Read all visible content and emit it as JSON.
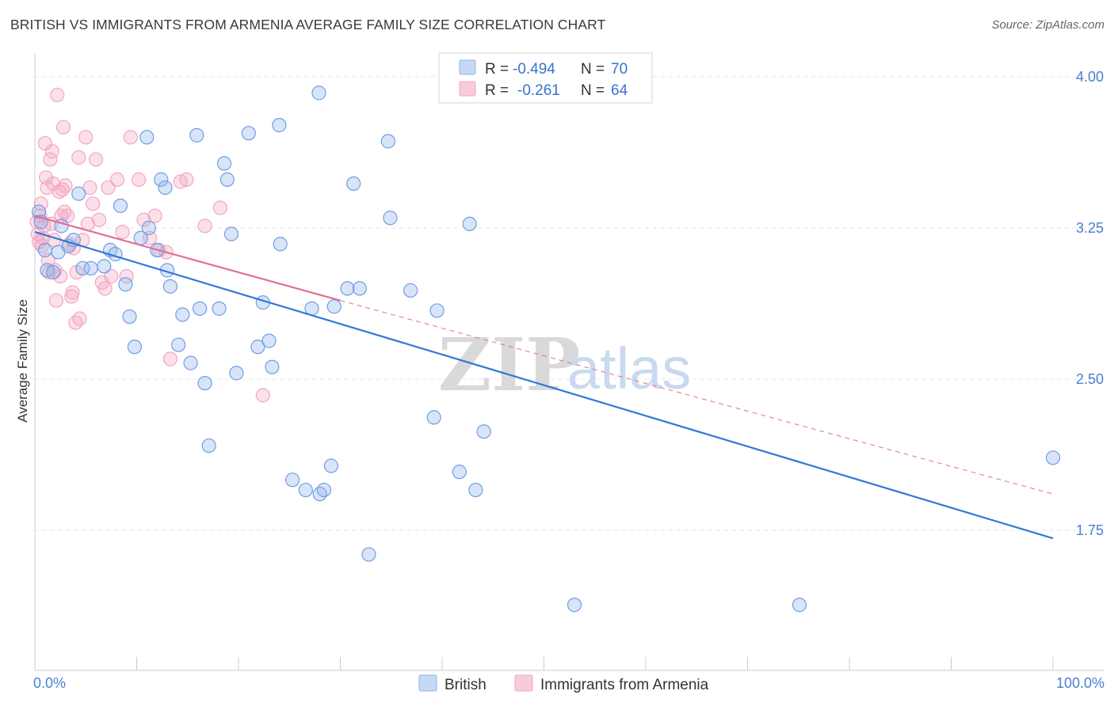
{
  "title": "BRITISH VS IMMIGRANTS FROM ARMENIA AVERAGE FAMILY SIZE CORRELATION CHART",
  "source": "Source: ZipAtlas.com",
  "watermark": {
    "zip": "ZIP",
    "atlas": "atlas"
  },
  "colors": {
    "british": "#8fb4ec",
    "british_line": "#2f78d8",
    "armenia": "#f3a6c2",
    "armenia_line": "#e06f96",
    "tick": "#4a7fd0",
    "grid": "#e6e6e6"
  },
  "legend": {
    "british": {
      "r_label": "R =",
      "r_value": "-0.494",
      "n_label": "N =",
      "n_value": "70"
    },
    "armenia": {
      "r_label": "R =",
      "r_value": "-0.261",
      "n_label": "N =",
      "n_value": "64"
    }
  },
  "chart_data": {
    "type": "scatter",
    "title": "BRITISH VS IMMIGRANTS FROM ARMENIA AVERAGE FAMILY SIZE CORRELATION CHART",
    "xlabel": "",
    "ylabel": "Average Family Size",
    "xlim": [
      0,
      100
    ],
    "ylim": [
      1.0,
      4.12
    ],
    "x_tick_labels": [
      "0.0%",
      "100.0%"
    ],
    "y_ticks": [
      1.75,
      2.5,
      3.25,
      4.0
    ],
    "y_tick_labels": [
      "1.75",
      "2.50",
      "3.25",
      "4.00"
    ],
    "grid": true,
    "legend_position": "bottom-center",
    "series": [
      {
        "name": "British",
        "trend": {
          "x": [
            0,
            100
          ],
          "y": [
            3.23,
            1.71
          ]
        },
        "points": [
          [
            0.4,
            3.33
          ],
          [
            0.6,
            3.28
          ],
          [
            1.0,
            3.14
          ],
          [
            1.2,
            3.04
          ],
          [
            1.8,
            3.03
          ],
          [
            2.3,
            3.13
          ],
          [
            2.6,
            3.26
          ],
          [
            3.3,
            3.16
          ],
          [
            3.8,
            3.19
          ],
          [
            4.3,
            3.42
          ],
          [
            4.7,
            3.05
          ],
          [
            5.5,
            3.05
          ],
          [
            6.8,
            3.06
          ],
          [
            7.4,
            3.14
          ],
          [
            7.9,
            3.12
          ],
          [
            8.4,
            3.36
          ],
          [
            8.9,
            2.97
          ],
          [
            9.3,
            2.81
          ],
          [
            9.8,
            2.66
          ],
          [
            10.4,
            3.2
          ],
          [
            11.0,
            3.7
          ],
          [
            11.2,
            3.25
          ],
          [
            12.0,
            3.14
          ],
          [
            12.4,
            3.49
          ],
          [
            12.8,
            3.45
          ],
          [
            13.0,
            3.04
          ],
          [
            13.3,
            2.96
          ],
          [
            14.1,
            2.67
          ],
          [
            14.5,
            2.82
          ],
          [
            15.3,
            2.58
          ],
          [
            15.9,
            3.71
          ],
          [
            16.2,
            2.85
          ],
          [
            16.7,
            2.48
          ],
          [
            17.1,
            2.17
          ],
          [
            18.1,
            2.85
          ],
          [
            18.6,
            3.57
          ],
          [
            18.9,
            3.49
          ],
          [
            19.3,
            3.22
          ],
          [
            19.8,
            2.53
          ],
          [
            21.0,
            3.72
          ],
          [
            21.9,
            2.66
          ],
          [
            22.4,
            2.88
          ],
          [
            23.0,
            2.69
          ],
          [
            23.3,
            2.56
          ],
          [
            24.0,
            3.76
          ],
          [
            24.1,
            3.17
          ],
          [
            25.3,
            2.0
          ],
          [
            26.6,
            1.95
          ],
          [
            27.2,
            2.85
          ],
          [
            27.9,
            3.92
          ],
          [
            28.0,
            1.93
          ],
          [
            28.4,
            1.95
          ],
          [
            29.1,
            2.07
          ],
          [
            29.4,
            2.86
          ],
          [
            30.7,
            2.95
          ],
          [
            31.3,
            3.47
          ],
          [
            31.9,
            2.95
          ],
          [
            32.8,
            1.63
          ],
          [
            34.7,
            3.68
          ],
          [
            34.9,
            3.3
          ],
          [
            36.9,
            2.94
          ],
          [
            39.2,
            2.31
          ],
          [
            39.5,
            2.84
          ],
          [
            41.7,
            2.04
          ],
          [
            42.7,
            3.27
          ],
          [
            43.3,
            1.95
          ],
          [
            44.1,
            2.24
          ],
          [
            53.0,
            1.38
          ],
          [
            75.1,
            1.38
          ],
          [
            100.0,
            2.11
          ]
        ]
      },
      {
        "name": "Immigrants from Armenia",
        "trend": {
          "x": [
            0,
            30
          ],
          "y": [
            3.31,
            2.89
          ]
        },
        "trend_extension": {
          "x": [
            30,
            100
          ],
          "y": [
            2.89,
            1.93
          ]
        },
        "points": [
          [
            0.2,
            3.28
          ],
          [
            0.3,
            3.22
          ],
          [
            0.4,
            3.18
          ],
          [
            0.5,
            3.31
          ],
          [
            0.6,
            3.37
          ],
          [
            0.7,
            3.16
          ],
          [
            0.8,
            3.2
          ],
          [
            0.9,
            3.26
          ],
          [
            1.0,
            3.67
          ],
          [
            1.1,
            3.5
          ],
          [
            1.2,
            3.45
          ],
          [
            1.3,
            3.09
          ],
          [
            1.4,
            3.03
          ],
          [
            1.5,
            3.59
          ],
          [
            1.6,
            3.27
          ],
          [
            1.7,
            3.63
          ],
          [
            1.8,
            3.47
          ],
          [
            1.9,
            3.19
          ],
          [
            2.0,
            3.04
          ],
          [
            2.1,
            2.89
          ],
          [
            2.2,
            3.91
          ],
          [
            2.4,
            3.43
          ],
          [
            2.5,
            3.01
          ],
          [
            2.6,
            3.31
          ],
          [
            2.7,
            3.44
          ],
          [
            2.8,
            3.75
          ],
          [
            2.9,
            3.33
          ],
          [
            3.0,
            3.46
          ],
          [
            3.2,
            3.31
          ],
          [
            3.4,
            3.17
          ],
          [
            3.6,
            2.91
          ],
          [
            3.7,
            2.93
          ],
          [
            3.8,
            3.15
          ],
          [
            4.0,
            2.78
          ],
          [
            4.1,
            3.03
          ],
          [
            4.3,
            3.6
          ],
          [
            4.4,
            2.8
          ],
          [
            4.7,
            3.19
          ],
          [
            5.0,
            3.7
          ],
          [
            5.2,
            3.27
          ],
          [
            5.4,
            3.45
          ],
          [
            5.7,
            3.37
          ],
          [
            6.0,
            3.59
          ],
          [
            6.3,
            3.29
          ],
          [
            6.6,
            2.98
          ],
          [
            6.9,
            2.95
          ],
          [
            7.2,
            3.45
          ],
          [
            7.5,
            3.01
          ],
          [
            8.1,
            3.49
          ],
          [
            8.6,
            3.23
          ],
          [
            9.0,
            3.01
          ],
          [
            9.4,
            3.7
          ],
          [
            10.2,
            3.49
          ],
          [
            10.7,
            3.29
          ],
          [
            11.3,
            3.2
          ],
          [
            11.8,
            3.31
          ],
          [
            12.2,
            3.14
          ],
          [
            12.9,
            3.13
          ],
          [
            13.3,
            2.6
          ],
          [
            14.3,
            3.48
          ],
          [
            14.9,
            3.49
          ],
          [
            16.7,
            3.26
          ],
          [
            18.2,
            3.35
          ],
          [
            22.4,
            2.42
          ]
        ]
      }
    ]
  }
}
